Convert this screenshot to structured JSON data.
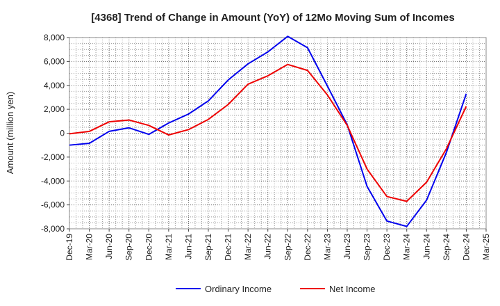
{
  "chart_data": {
    "type": "line",
    "title": "[4368]  Trend of Change in Amount (YoY) of 12Mo Moving Sum of Incomes",
    "xlabel": "",
    "ylabel": "Amount (million yen)",
    "categories": [
      "Dec-19",
      "Mar-20",
      "Jun-20",
      "Sep-20",
      "Dec-20",
      "Mar-21",
      "Jun-21",
      "Sep-21",
      "Dec-21",
      "Mar-22",
      "Jun-22",
      "Sep-22",
      "Dec-22",
      "Mar-23",
      "Jun-23",
      "Sep-23",
      "Dec-23",
      "Mar-24",
      "Jun-24",
      "Sep-24",
      "Dec-24",
      "Mar-25"
    ],
    "yticks": [
      "8,000",
      "6,000",
      "4,000",
      "2,000",
      "0",
      "-2,000",
      "-4,000",
      "-6,000",
      "-8,000"
    ],
    "ytick_values": [
      8000,
      6000,
      4000,
      2000,
      0,
      -2000,
      -4000,
      -6000,
      -8000
    ],
    "ylim": [
      -8000,
      8000
    ],
    "grid": true,
    "legend_position": "bottom",
    "series": [
      {
        "name": "Ordinary Income",
        "color": "#0000ee",
        "values": [
          -1000,
          -850,
          150,
          450,
          -100,
          850,
          1600,
          2700,
          4450,
          5800,
          6800,
          8100,
          7150,
          3950,
          700,
          -4450,
          -7350,
          -7800,
          -5600,
          -1600,
          3300,
          null
        ]
      },
      {
        "name": "Net Income",
        "color": "#ee0000",
        "values": [
          -50,
          150,
          950,
          1100,
          650,
          -150,
          300,
          1150,
          2400,
          4100,
          4800,
          5750,
          5250,
          3200,
          650,
          -3000,
          -5300,
          -5700,
          -4100,
          -1300,
          2250,
          null
        ]
      }
    ]
  }
}
